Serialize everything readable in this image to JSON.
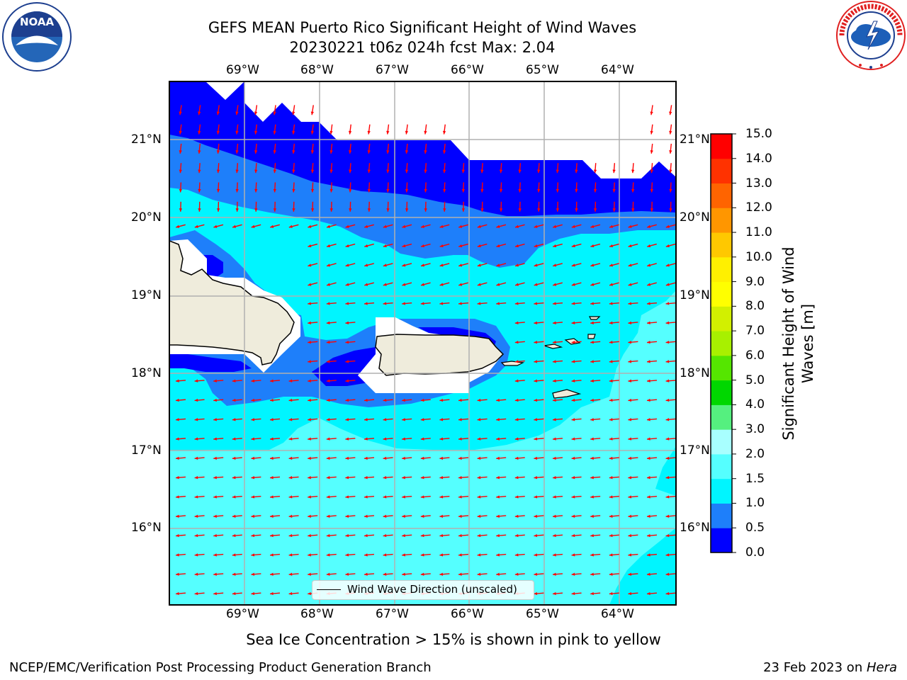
{
  "header": {
    "title_line1": "GEFS MEAN Puerto Rico Significant Height of Wind Waves",
    "title_line2": "20230221 t06z 024h fcst   Max: 2.04"
  },
  "logos": {
    "noaa_text": "NOAA",
    "noaa_ring_text": "NATIONAL OCEANIC AND ATMOSPHERIC ADMINISTRATION · U.S. DEPARTMENT OF COMMERCE",
    "nws_ring_text": "NATIONAL WEATHER SERVICE"
  },
  "map": {
    "lon_labels": [
      "69°W",
      "68°W",
      "67°W",
      "66°W",
      "65°W",
      "64°W"
    ],
    "lat_labels": [
      "21°N",
      "20°N",
      "19°N",
      "18°N",
      "17°N",
      "16°N"
    ],
    "legend_label": "Wind Wave Direction (unscaled)",
    "arrow_color": "#ff0000",
    "land_color": "#efecdc"
  },
  "colorbar": {
    "label_line1": "Significant Height of Wind",
    "label_line2": "Waves [m]",
    "ticks": [
      "0.0",
      "0.5",
      "1.0",
      "1.5",
      "2.0",
      "3.0",
      "4.0",
      "5.0",
      "6.0",
      "7.0",
      "8.0",
      "9.0",
      "10.0",
      "11.0",
      "12.0",
      "13.0",
      "14.0",
      "15.0"
    ],
    "colors": [
      "#0000ff",
      "#1e7ffa",
      "#00f5ff",
      "#55ffff",
      "#a8ffff",
      "#55f07f",
      "#00d700",
      "#55e600",
      "#a8f000",
      "#d2f000",
      "#ffff00",
      "#fff000",
      "#ffc800",
      "#ff9600",
      "#ff6400",
      "#ff3200",
      "#ff0000"
    ]
  },
  "footer": {
    "sea_ice_note": "Sea Ice Concentration > 15% is shown in pink to yellow",
    "branch": "NCEP/EMC/Verification Post Processing Product Generation Branch",
    "date_prefix": "23 Feb 2023 on ",
    "machine": "Hera"
  }
}
